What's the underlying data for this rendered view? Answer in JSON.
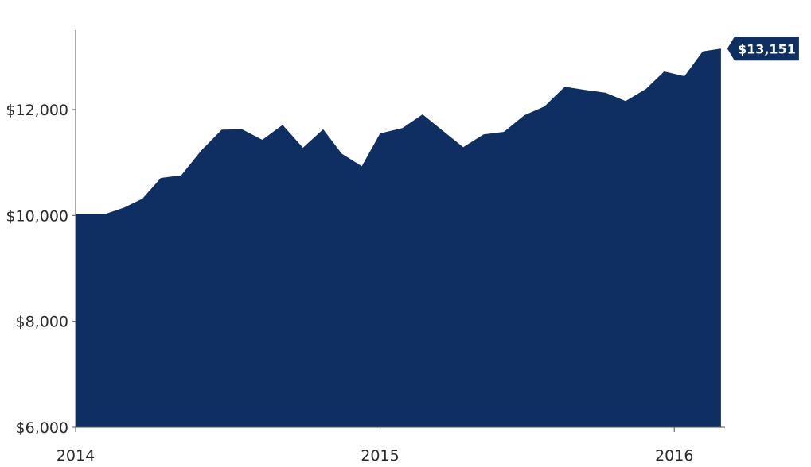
{
  "chart_data": {
    "type": "area",
    "title": "",
    "xlabel": "",
    "ylabel": "",
    "ylim": [
      6000,
      13500
    ],
    "xlim": [
      0,
      32
    ],
    "x_ticks": [
      {
        "x": 0,
        "label": "2014"
      },
      {
        "x": 15,
        "label": "2015"
      },
      {
        "x": 29.5,
        "label": "2016"
      }
    ],
    "y_ticks": [
      {
        "y": 6000,
        "label": "$6,000"
      },
      {
        "y": 8000,
        "label": "$8,000"
      },
      {
        "y": 10000,
        "label": "$10,000"
      },
      {
        "y": 12000,
        "label": "$12,000"
      }
    ],
    "series": [
      {
        "values": [
          [
            0,
            10020
          ],
          [
            1.4,
            10020
          ],
          [
            2.4,
            10150
          ],
          [
            3.3,
            10320
          ],
          [
            4.2,
            10710
          ],
          [
            5.2,
            10760
          ],
          [
            6.2,
            11230
          ],
          [
            7.2,
            11620
          ],
          [
            8.2,
            11630
          ],
          [
            9.2,
            11430
          ],
          [
            10.2,
            11710
          ],
          [
            11.2,
            11280
          ],
          [
            12.2,
            11630
          ],
          [
            13.1,
            11170
          ],
          [
            14.1,
            10930
          ],
          [
            15,
            11550
          ],
          [
            16.1,
            11650
          ],
          [
            17.1,
            11910
          ],
          [
            18.1,
            11600
          ],
          [
            19.1,
            11290
          ],
          [
            20.1,
            11530
          ],
          [
            21.1,
            11580
          ],
          [
            22.1,
            11890
          ],
          [
            23.1,
            12060
          ],
          [
            24.1,
            12430
          ],
          [
            25.1,
            12370
          ],
          [
            26.1,
            12320
          ],
          [
            27.1,
            12160
          ],
          [
            28.1,
            12390
          ],
          [
            29,
            12720
          ],
          [
            30,
            12630
          ],
          [
            30.9,
            13100
          ],
          [
            31.8,
            13151
          ]
        ]
      }
    ],
    "end_label": "$13,151",
    "colors": {
      "area": "#0f2f63",
      "label_bg": "#0f2f63",
      "label_text": "#ffffff",
      "axis": "#555555",
      "tick_text": "#2a2a2a"
    },
    "grid": false
  }
}
